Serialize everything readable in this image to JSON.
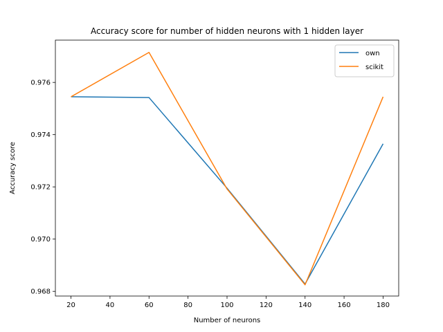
{
  "chart_data": {
    "type": "line",
    "title": "Accuracy score for number of hidden neurons with 1 hidden layer",
    "xlabel": "Number of neurons",
    "ylabel": "Accuracy score",
    "x": [
      20,
      60,
      100,
      140,
      180
    ],
    "xticks": [
      20,
      40,
      60,
      80,
      100,
      120,
      140,
      160,
      180
    ],
    "yticks": [
      0.968,
      0.97,
      0.972,
      0.974,
      0.976
    ],
    "xlim": [
      12,
      188
    ],
    "ylim": [
      0.96782,
      0.97762
    ],
    "grid": false,
    "legend_position": "top-right",
    "series": [
      {
        "name": "own",
        "color": "#1f77b4",
        "values": [
          0.97545,
          0.97542,
          0.97195,
          0.96828,
          0.97365
        ]
      },
      {
        "name": "scikit",
        "color": "#ff7f0e",
        "values": [
          0.97545,
          0.97715,
          0.97192,
          0.96825,
          0.97545
        ]
      }
    ]
  }
}
